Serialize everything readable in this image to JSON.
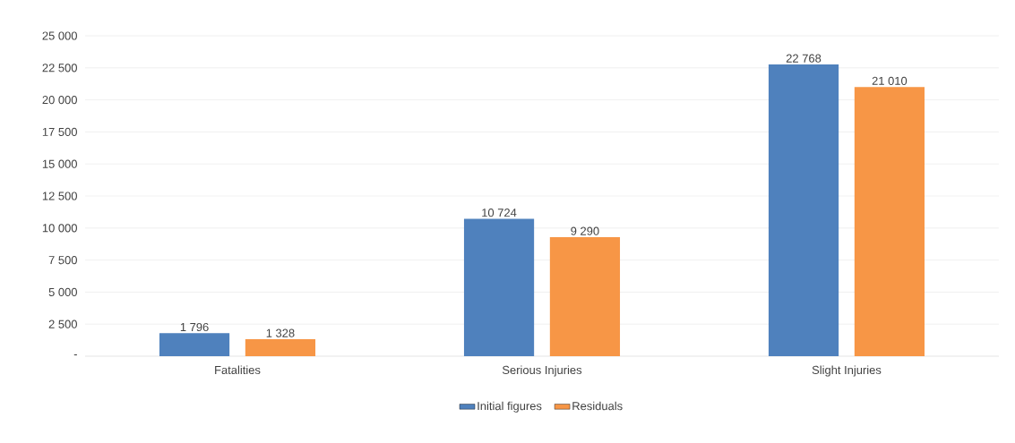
{
  "chart_data": {
    "type": "bar",
    "categories": [
      "Fatalities",
      "Serious Injuries",
      "Slight Injuries"
    ],
    "series": [
      {
        "name": "Initial figures",
        "color": "#4f81bd",
        "values": [
          1796,
          10724,
          22768
        ],
        "value_labels": [
          "1 796",
          "10 724",
          "22 768"
        ]
      },
      {
        "name": "Residuals",
        "color": "#f79646",
        "values": [
          1328,
          9290,
          21010
        ],
        "value_labels": [
          "1 328",
          "9 290",
          "21 010"
        ]
      }
    ],
    "ylim": [
      0,
      25000
    ],
    "yticks": [
      {
        "value": 0,
        "label": "-"
      },
      {
        "value": 2500,
        "label": "2 500"
      },
      {
        "value": 5000,
        "label": "5 000"
      },
      {
        "value": 7500,
        "label": "7 500"
      },
      {
        "value": 10000,
        "label": "10 000"
      },
      {
        "value": 12500,
        "label": "12 500"
      },
      {
        "value": 15000,
        "label": "15 000"
      },
      {
        "value": 17500,
        "label": "17 500"
      },
      {
        "value": 20000,
        "label": "20 000"
      },
      {
        "value": 22500,
        "label": "22 500"
      },
      {
        "value": 25000,
        "label": "25 000"
      }
    ],
    "grid": "y",
    "legend": "bottom"
  }
}
